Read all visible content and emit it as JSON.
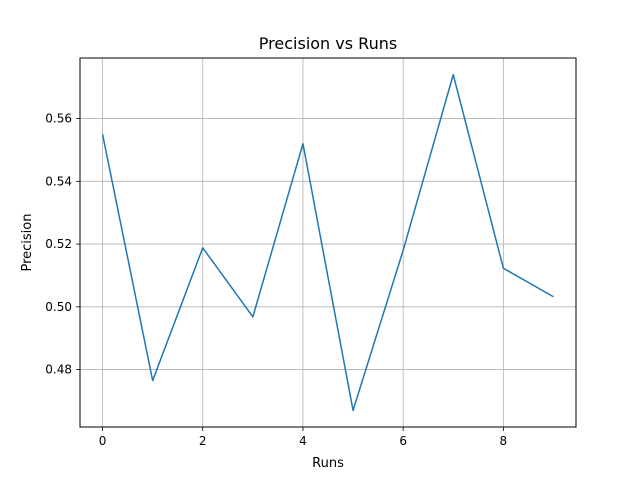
{
  "chart_data": {
    "type": "line",
    "title": "Precision vs Runs",
    "xlabel": "Runs",
    "ylabel": "Precision",
    "grid": true,
    "xlim": [
      -0.45,
      9.45
    ],
    "ylim": [
      0.4617,
      0.5793
    ],
    "xticks": [
      0,
      2,
      4,
      6,
      8
    ],
    "xtick_labels": [
      "0",
      "2",
      "4",
      "6",
      "8"
    ],
    "yticks": [
      0.48,
      0.5,
      0.52,
      0.54,
      0.56
    ],
    "ytick_labels": [
      "0.48",
      "0.50",
      "0.52",
      "0.54",
      "0.56"
    ],
    "series": [
      {
        "color": "#1f77b4",
        "x": [
          0,
          1,
          2,
          3,
          4,
          5,
          6,
          7,
          8,
          9
        ],
        "y": [
          0.555,
          0.4765,
          0.5188,
          0.4968,
          0.552,
          0.467,
          0.518,
          0.574,
          0.5123,
          0.5032
        ]
      }
    ]
  }
}
